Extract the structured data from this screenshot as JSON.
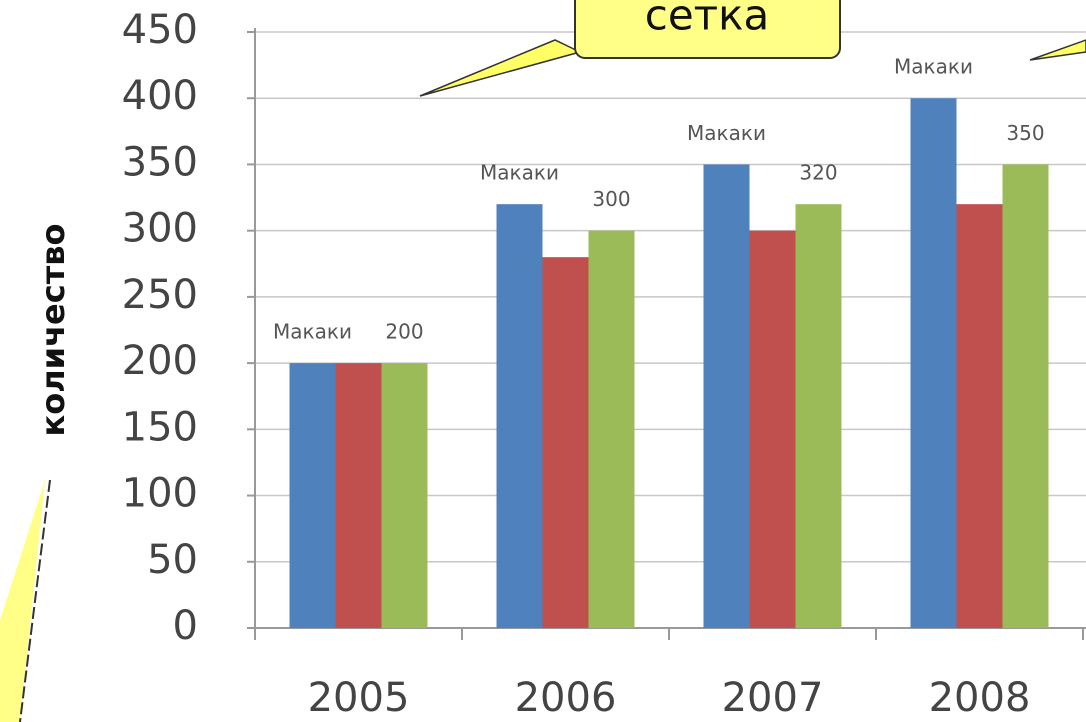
{
  "chart_data": {
    "type": "bar",
    "ylabel": "количество",
    "annotation": "сетка",
    "categories": [
      "2005",
      "2006",
      "2007",
      "2008"
    ],
    "series": [
      {
        "name": "Макаки",
        "color": "#4f81bd",
        "values": [
          200,
          320,
          350,
          400
        ]
      },
      {
        "color": "#c0504d",
        "values": [
          200,
          280,
          300,
          320
        ]
      },
      {
        "color": "#9bbb59",
        "values": [
          200,
          300,
          320,
          350
        ]
      }
    ],
    "ylim": [
      0,
      450
    ],
    "yticks": [
      0,
      50,
      100,
      150,
      200,
      250,
      300,
      350,
      400,
      450
    ],
    "grid": true
  }
}
